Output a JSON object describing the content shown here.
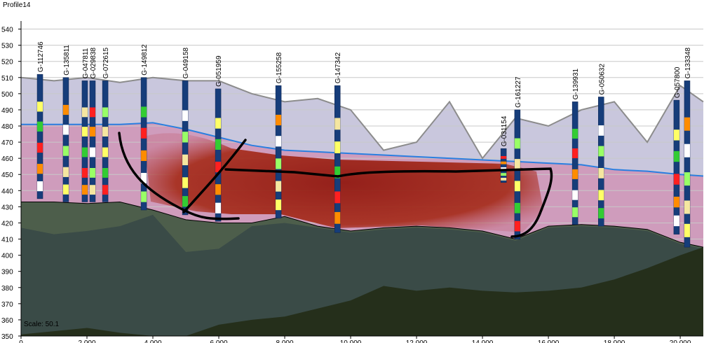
{
  "chart_data": {
    "type": "profile",
    "title": "Profile14",
    "scale_label": "Scale: 50.1",
    "xlim": [
      0,
      20700
    ],
    "ylim": [
      350,
      545
    ],
    "yticks": [
      350,
      360,
      370,
      380,
      390,
      400,
      410,
      420,
      430,
      440,
      450,
      460,
      470,
      480,
      490,
      500,
      510,
      520,
      530,
      540
    ],
    "xticks": [
      0,
      {
        "value": 2000,
        "label": "2,000"
      },
      {
        "value": 4000,
        "label": "4,000"
      },
      {
        "value": 6000,
        "label": "6,000"
      },
      {
        "value": 8000,
        "label": "8,000"
      },
      {
        "value": 10000,
        "label": "10,000"
      },
      {
        "value": 12000,
        "label": "12,000"
      },
      {
        "value": 14000,
        "label": "14,000"
      },
      {
        "value": 16000,
        "label": "16,000"
      },
      {
        "value": 18000,
        "label": "18,000"
      },
      {
        "value": 20000,
        "label": "20,000"
      }
    ],
    "grid": true,
    "layer_x": [
      0,
      1000,
      2000,
      3000,
      4000,
      5000,
      6000,
      7000,
      8000,
      9000,
      10000,
      11000,
      12000,
      13000,
      14000,
      15000,
      16000,
      17000,
      18000,
      19000,
      20000,
      20700
    ],
    "surface": {
      "color": "#8c8c8c",
      "y": [
        510,
        508,
        510,
        507,
        510,
        508,
        508,
        500,
        495,
        497,
        490,
        465,
        470,
        495,
        460,
        485,
        480,
        490,
        495,
        470,
        505,
        495
      ]
    },
    "water_table": {
      "color": "#2a7fe0",
      "y": [
        481,
        481,
        481,
        481,
        482,
        478,
        473,
        468,
        465,
        464,
        463,
        462,
        461,
        460,
        459,
        458,
        457,
        456,
        453,
        452,
        450,
        449
      ]
    },
    "bedrock": {
      "color": "#4d5e4b",
      "y": [
        433,
        433,
        432,
        433,
        428,
        422,
        420,
        420,
        424,
        418,
        415,
        417,
        418,
        417,
        415,
        410,
        418,
        419,
        418,
        416,
        408,
        405
      ]
    },
    "lower_rock": {
      "color": "#3a4b47",
      "y": [
        417,
        413,
        415,
        418,
        425,
        402,
        404,
        418,
        420,
        417,
        414,
        416,
        417,
        416,
        414,
        409,
        417,
        418,
        417,
        415,
        407,
        404
      ]
    },
    "deep_rock": {
      "color": "#252f1b",
      "y": [
        351,
        353,
        355,
        352,
        350,
        350,
        357,
        360,
        362,
        367,
        372,
        381,
        378,
        380,
        378,
        377,
        378,
        380,
        385,
        392,
        400,
        405
      ]
    },
    "boreholes": [
      {
        "name": "G-112746",
        "x": 575,
        "top": 512,
        "bottom": 435
      },
      {
        "name": "G-135811",
        "x": 1360,
        "top": 510,
        "bottom": 433
      },
      {
        "name": "G-047811",
        "x": 1935,
        "top": 508,
        "bottom": 433
      },
      {
        "name": "G-029838",
        "x": 2170,
        "top": 508,
        "bottom": 433
      },
      {
        "name": "G-072615",
        "x": 2555,
        "top": 508,
        "bottom": 433
      },
      {
        "name": "G-149812",
        "x": 3725,
        "top": 510,
        "bottom": 428
      },
      {
        "name": "G-049158",
        "x": 4980,
        "top": 508,
        "bottom": 425
      },
      {
        "name": "G-051959",
        "x": 5980,
        "top": 503,
        "bottom": 421
      },
      {
        "name": "G-155258",
        "x": 7810,
        "top": 505,
        "bottom": 423
      },
      {
        "name": "G-147342",
        "x": 9600,
        "top": 505,
        "bottom": 414
      },
      {
        "name": "G-031154",
        "x": 14640,
        "top": 466,
        "bottom": 445
      },
      {
        "name": "G-161227",
        "x": 15060,
        "top": 490,
        "bottom": 410
      },
      {
        "name": "G-139931",
        "x": 16810,
        "top": 495,
        "bottom": 419
      },
      {
        "name": "G-050632",
        "x": 17600,
        "top": 498,
        "bottom": 418
      },
      {
        "name": "G-057800",
        "x": 19890,
        "top": 496,
        "bottom": 413
      },
      {
        "name": "G-133348",
        "x": 20210,
        "top": 508,
        "bottom": 405
      }
    ]
  }
}
